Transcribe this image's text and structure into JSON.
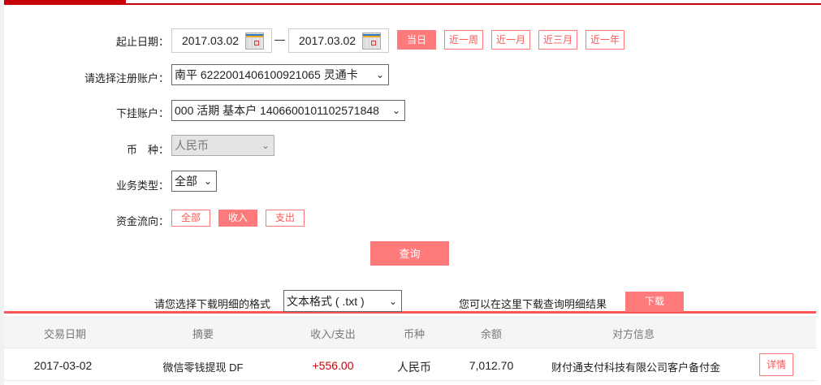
{
  "form": {
    "date_label": "起止日期：",
    "start_date": "2017.03.02",
    "end_date": "2017.03.02",
    "quick_ranges": [
      "当日",
      "近一周",
      "近一月",
      "近三月",
      "近一年"
    ],
    "active_range": "当日",
    "account_label": "请选择注册账户：",
    "account_value": "南平 6222001406100921065 灵通卡",
    "sub_account_label": "下挂账户：",
    "sub_account_value": "000 活期 基本户 1406600101102571848",
    "currency_label": "币　种：",
    "currency_value": "人民币",
    "biz_type_label": "业务类型：",
    "biz_type_value": "全部",
    "flow_label": "资金流向：",
    "flow_options": [
      "全部",
      "收入",
      "支出"
    ],
    "active_flow": "收入",
    "query_button": "查询"
  },
  "download": {
    "format_label": "请您选择下载明细的格式",
    "format_value": "文本格式 ( .txt )",
    "hint": "您可以在这里下载查询明细结果",
    "button": "下载"
  },
  "table": {
    "headers": [
      "交易日期",
      "摘要",
      "收入/支出",
      "币种",
      "余额",
      "对方信息"
    ],
    "rows": [
      {
        "date": "2017-03-02",
        "summary": "微信零钱提现 DF",
        "amount": "+556.00",
        "currency": "人民币",
        "balance": "7,012.70",
        "counterparty": "财付通支付科技有限公司客户备付金",
        "action": "详情"
      }
    ]
  },
  "colors": {
    "brand": "#c8000a",
    "accent": "#ff7b7b",
    "income": "#c8000a"
  }
}
